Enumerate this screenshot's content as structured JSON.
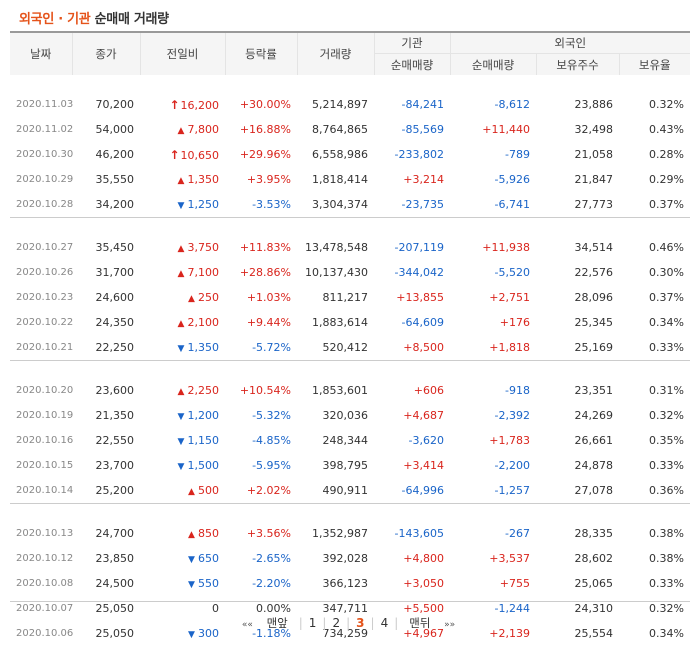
{
  "title": {
    "part1": "외국인 · 기관",
    "part2": "순매매 거래량"
  },
  "headers": {
    "date": "날짜",
    "close": "종가",
    "change": "전일비",
    "rate": "등락률",
    "volume": "거래량",
    "inst": "기관",
    "foreign": "외국인",
    "inst_net": "순매매량",
    "foreign_net": "순매매량",
    "foreign_hold": "보유주수",
    "foreign_ratio": "보유율"
  },
  "rows": [
    [
      "2020.11.03",
      "70,200",
      "upper",
      "16,200",
      "+30.00%",
      "5,214,897",
      "-84,241",
      "-8,612",
      "23,886",
      "0.32%"
    ],
    [
      "2020.11.02",
      "54,000",
      "up",
      "7,800",
      "+16.88%",
      "8,764,865",
      "-85,569",
      "+11,440",
      "32,498",
      "0.43%"
    ],
    [
      "2020.10.30",
      "46,200",
      "upper",
      "10,650",
      "+29.96%",
      "6,558,986",
      "-233,802",
      "-789",
      "21,058",
      "0.28%"
    ],
    [
      "2020.10.29",
      "35,550",
      "up",
      "1,350",
      "+3.95%",
      "1,818,414",
      "+3,214",
      "-5,926",
      "21,847",
      "0.29%"
    ],
    [
      "2020.10.28",
      "34,200",
      "down",
      "1,250",
      "-3.53%",
      "3,304,374",
      "-23,735",
      "-6,741",
      "27,773",
      "0.37%"
    ],
    [
      "2020.10.27",
      "35,450",
      "up",
      "3,750",
      "+11.83%",
      "13,478,548",
      "-207,119",
      "+11,938",
      "34,514",
      "0.46%"
    ],
    [
      "2020.10.26",
      "31,700",
      "up",
      "7,100",
      "+28.86%",
      "10,137,430",
      "-344,042",
      "-5,520",
      "22,576",
      "0.30%"
    ],
    [
      "2020.10.23",
      "24,600",
      "up",
      "250",
      "+1.03%",
      "811,217",
      "+13,855",
      "+2,751",
      "28,096",
      "0.37%"
    ],
    [
      "2020.10.22",
      "24,350",
      "up",
      "2,100",
      "+9.44%",
      "1,883,614",
      "-64,609",
      "+176",
      "25,345",
      "0.34%"
    ],
    [
      "2020.10.21",
      "22,250",
      "down",
      "1,350",
      "-5.72%",
      "520,412",
      "+8,500",
      "+1,818",
      "25,169",
      "0.33%"
    ],
    [
      "2020.10.20",
      "23,600",
      "up",
      "2,250",
      "+10.54%",
      "1,853,601",
      "+606",
      "-918",
      "23,351",
      "0.31%"
    ],
    [
      "2020.10.19",
      "21,350",
      "down",
      "1,200",
      "-5.32%",
      "320,036",
      "+4,687",
      "-2,392",
      "24,269",
      "0.32%"
    ],
    [
      "2020.10.16",
      "22,550",
      "down",
      "1,150",
      "-4.85%",
      "248,344",
      "-3,620",
      "+1,783",
      "26,661",
      "0.35%"
    ],
    [
      "2020.10.15",
      "23,700",
      "down",
      "1,500",
      "-5.95%",
      "398,795",
      "+3,414",
      "-2,200",
      "24,878",
      "0.33%"
    ],
    [
      "2020.10.14",
      "25,200",
      "up",
      "500",
      "+2.02%",
      "490,911",
      "-64,996",
      "-1,257",
      "27,078",
      "0.36%"
    ],
    [
      "2020.10.13",
      "24,700",
      "up",
      "850",
      "+3.56%",
      "1,352,987",
      "-143,605",
      "-267",
      "28,335",
      "0.38%"
    ],
    [
      "2020.10.12",
      "23,850",
      "down",
      "650",
      "-2.65%",
      "392,028",
      "+4,800",
      "+3,537",
      "28,602",
      "0.38%"
    ],
    [
      "2020.10.08",
      "24,500",
      "down",
      "550",
      "-2.20%",
      "366,123",
      "+3,050",
      "+755",
      "25,065",
      "0.33%"
    ],
    [
      "2020.10.07",
      "25,050",
      "none",
      "0",
      "0.00%",
      "347,711",
      "+5,500",
      "-1,244",
      "24,310",
      "0.32%"
    ],
    [
      "2020.10.06",
      "25,050",
      "down",
      "300",
      "-1.18%",
      "734,259",
      "+4,967",
      "+2,139",
      "25,554",
      "0.34%"
    ]
  ],
  "pager": {
    "first": "맨앞",
    "pages": [
      "1",
      "2",
      "3",
      "4"
    ],
    "current": "3",
    "last": "맨뒤",
    "prev_glyph": "««",
    "next_glyph": "»»"
  },
  "colors": {
    "up": "#d9251d",
    "down": "#1a64c8",
    "accent": "#e5531a"
  },
  "icons": {
    "upper": "upper-limit-arrow-icon",
    "up": "up-triangle-icon",
    "down": "down-triangle-icon"
  }
}
